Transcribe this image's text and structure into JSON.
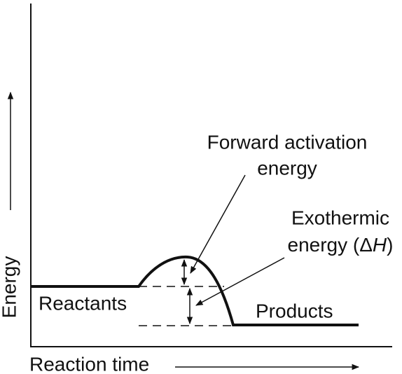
{
  "axes": {
    "y_label": "Energy",
    "x_label": "Reaction time"
  },
  "labels": {
    "forward_activation": [
      "Forward activation",
      "energy"
    ],
    "exothermic": {
      "line1": "Exothermic",
      "line2": [
        "energy (Δ",
        "H",
        ")"
      ]
    },
    "reactants": "Reactants",
    "products": "Products"
  }
}
